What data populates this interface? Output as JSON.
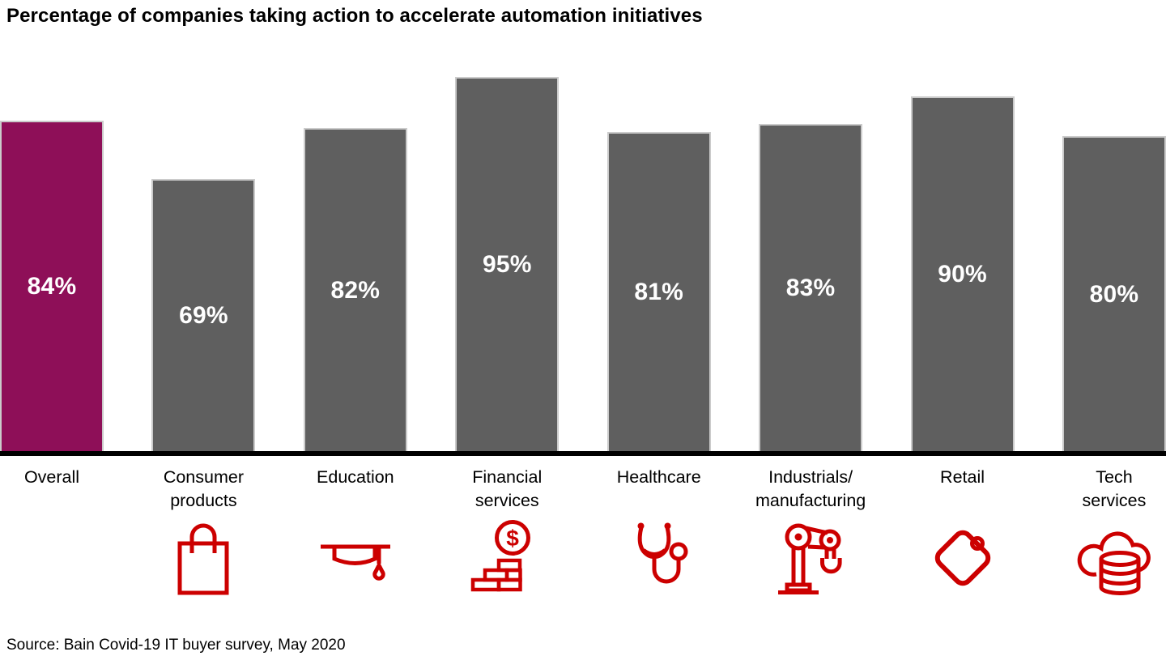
{
  "title": "Percentage of companies taking action to accelerate automation initiatives",
  "source": "Source: Bain Covid-19 IT buyer survey, May 2020",
  "colors": {
    "highlight_bar": "#8E0F58",
    "default_bar": "#5F5F5F",
    "icon_red": "#CC0000",
    "axis": "#000000",
    "value_label": "#FFFFFF"
  },
  "chart_data": {
    "type": "bar",
    "title": "Percentage of companies taking action to accelerate automation initiatives",
    "unit": "%",
    "ylim": [
      0,
      100
    ],
    "grid": false,
    "legend": false,
    "highlighted_category": "Overall",
    "categories": [
      "Overall",
      "Consumer products",
      "Education",
      "Financial services",
      "Healthcare",
      "Industrials/manufacturing",
      "Retail",
      "Tech services"
    ],
    "values": [
      84,
      69,
      82,
      95,
      81,
      83,
      90,
      80
    ],
    "bars": [
      {
        "category": "Overall",
        "label_lines": [
          "Overall"
        ],
        "value": 84,
        "value_label": "84%",
        "highlight": true,
        "icon": null
      },
      {
        "category": "Consumer products",
        "label_lines": [
          "Consumer",
          "products"
        ],
        "value": 69,
        "value_label": "69%",
        "highlight": false,
        "icon": "shopping-bag-icon"
      },
      {
        "category": "Education",
        "label_lines": [
          "Education"
        ],
        "value": 82,
        "value_label": "82%",
        "highlight": false,
        "icon": "graduation-cap-icon"
      },
      {
        "category": "Financial services",
        "label_lines": [
          "Financial",
          "services"
        ],
        "value": 95,
        "value_label": "95%",
        "highlight": false,
        "icon": "money-stack-icon"
      },
      {
        "category": "Healthcare",
        "label_lines": [
          "Healthcare"
        ],
        "value": 81,
        "value_label": "81%",
        "highlight": false,
        "icon": "stethoscope-icon"
      },
      {
        "category": "Industrials/manufacturing",
        "label_lines": [
          "Industrials/",
          "manufacturing"
        ],
        "value": 83,
        "value_label": "83%",
        "highlight": false,
        "icon": "robot-arm-icon"
      },
      {
        "category": "Retail",
        "label_lines": [
          "Retail"
        ],
        "value": 90,
        "value_label": "90%",
        "highlight": false,
        "icon": "price-tag-icon"
      },
      {
        "category": "Tech services",
        "label_lines": [
          "Tech",
          "services"
        ],
        "value": 80,
        "value_label": "80%",
        "highlight": false,
        "icon": "cloud-database-icon"
      }
    ]
  }
}
